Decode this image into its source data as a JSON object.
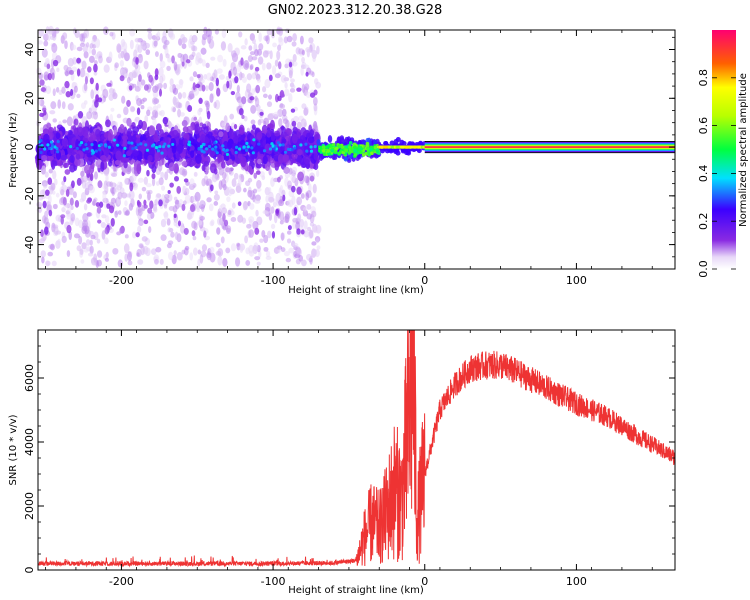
{
  "title": "GN02.2023.312.20.38.G28",
  "chart_data": [
    {
      "type": "heatmap",
      "xlabel": "Height of straight line (km)",
      "ylabel": "Frequency (Hz)",
      "xlim": [
        -255,
        165
      ],
      "ylim": [
        -50,
        48
      ],
      "x_ticks": [
        -200,
        -100,
        0,
        100
      ],
      "y_ticks": [
        -40,
        -20,
        0,
        20,
        40
      ],
      "colorbar": {
        "label": "Normalized spectral amplitude",
        "range": [
          0,
          1
        ],
        "ticks": [
          0.0,
          0.2,
          0.4,
          0.6,
          0.8
        ]
      },
      "regions": [
        {
          "x_range": [
            -255,
            -70
          ],
          "freq_center": 0,
          "freq_half_width": 10,
          "amplitude": 0.15,
          "scatter_half_width": 48
        },
        {
          "x_range": [
            -70,
            -30
          ],
          "freq_center": -1,
          "freq_half_width": 4,
          "amplitude": 0.45
        },
        {
          "x_range": [
            -30,
            0
          ],
          "freq_center": 0,
          "freq_half_width": 2,
          "amplitude": 0.8
        },
        {
          "x_range": [
            0,
            165
          ],
          "freq_center": 0,
          "freq_half_width": 1,
          "amplitude": 0.95
        }
      ]
    },
    {
      "type": "line",
      "xlabel": "Height of straight line (km)",
      "ylabel": "SNR (10 * v/v)",
      "xlim": [
        -255,
        165
      ],
      "ylim": [
        0,
        7500
      ],
      "x_ticks": [
        -200,
        -100,
        0,
        100
      ],
      "y_ticks": [
        0,
        2000,
        4000,
        6000
      ],
      "color": "#ee3333",
      "series": [
        {
          "x": [
            -255,
            -200,
            -150,
            -100,
            -60,
            -45,
            -40,
            -35,
            -30,
            -25,
            -20,
            -15,
            -10,
            -8,
            -5,
            0,
            10,
            20,
            30,
            40,
            50,
            60,
            80,
            100,
            120,
            140,
            165
          ],
          "y": [
            200,
            200,
            200,
            200,
            220,
            300,
            1000,
            1500,
            1300,
            1800,
            2500,
            2200,
            5000,
            7400,
            1500,
            3000,
            5000,
            5800,
            6300,
            6400,
            6400,
            6200,
            5700,
            5200,
            4800,
            4200,
            3500
          ]
        }
      ]
    }
  ]
}
